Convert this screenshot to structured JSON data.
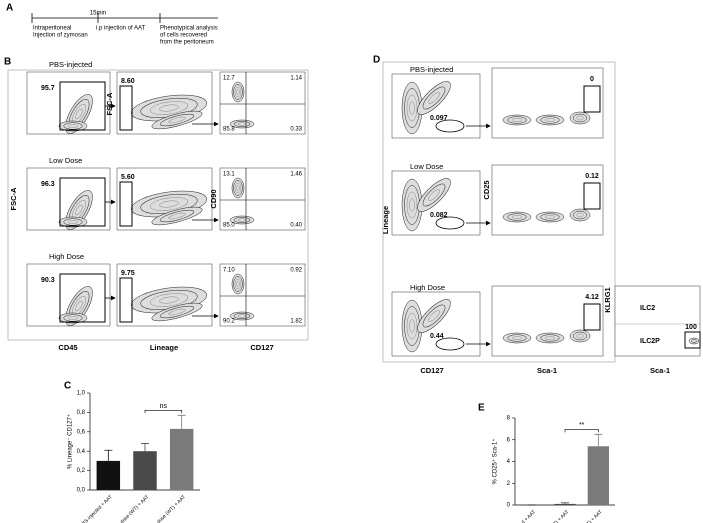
{
  "panel_labels": [
    "A",
    "B",
    "C",
    "D",
    "E"
  ],
  "timeline": {
    "step_1": [
      "Intraperitoneal",
      "Injection of zymosan"
    ],
    "interval": "15min",
    "step_2": "i.p injection of AAT",
    "step_3": [
      "Phenotypical analysis",
      "of cells recovered",
      "from the peritoneum"
    ]
  },
  "panel_b": {
    "row_titles": [
      "PBS-injected",
      "Low Dose",
      "High Dose"
    ],
    "axis_labels": {
      "y1": "FSC-A",
      "x1": "CD45",
      "y2": "FSC-A",
      "x2": "Lineage",
      "y3": "CD90",
      "x3": "CD127"
    },
    "cd45_gate": [
      "95.7",
      "96.3",
      "90.3"
    ],
    "lineage_gate": [
      "8.60",
      "5.60",
      "9.75"
    ],
    "quadrants": [
      [
        "12.7",
        "1.14",
        "85.8",
        "0.33"
      ],
      [
        "13.1",
        "1.46",
        "85.0",
        "0.40"
      ],
      [
        "7.10",
        "0.92",
        "90.2",
        "1.82"
      ]
    ]
  },
  "panel_d": {
    "row_titles": [
      "PBS-injected",
      "Low Dose",
      "High Dose"
    ],
    "axis_labels": {
      "y1": "Lineage",
      "x1": "CD127",
      "y2": "CD25",
      "x2": "Sca-1",
      "y3": "KLRG1",
      "x3": "Sca-1"
    },
    "cd127_gate": [
      "0.097",
      "0.082",
      "0.44"
    ],
    "sca1_gate": [
      "0",
      "0.12",
      "4.12"
    ],
    "klrg1_panel": {
      "upper": "ILC2",
      "lower": "ILC2P",
      "gate": "100"
    }
  },
  "chart_data": [
    {
      "type": "bar",
      "ylabel": "% Lineage⁻ CD127⁺",
      "categories": [
        "PBS-injected + AAT",
        "Low-dose (WT) + AAT",
        "High-dose (WT) + AAT"
      ],
      "values": [
        0.3,
        0.4,
        0.63
      ],
      "errors": [
        0.11,
        0.08,
        0.14
      ],
      "colors": [
        "#111111",
        "#4a4a4a",
        "#7a7a7a"
      ],
      "ylim": [
        0,
        1.0
      ],
      "yticks": [
        {
          "value": 0,
          "label": "0,0"
        },
        {
          "value": 0.2,
          "label": "0,2"
        },
        {
          "value": 0.4,
          "label": "0,4"
        },
        {
          "value": 0.6,
          "label": "0,6"
        },
        {
          "value": 0.8,
          "label": "0,8"
        },
        {
          "value": 1.0,
          "label": "1,0"
        }
      ],
      "annotation": "ns"
    },
    {
      "type": "bar",
      "ylabel": "% CD25⁺ Sca-1⁺",
      "categories": [
        "PBS-injected + AAT",
        "Low-dose (WT) + AAT",
        "High-dose (WT) + AAT"
      ],
      "values": [
        0,
        0.1,
        5.4
      ],
      "errors": [
        0,
        0.1,
        1.1
      ],
      "colors": [
        "#111111",
        "#4a4a4a",
        "#7a7a7a"
      ],
      "ylim": [
        0,
        8
      ],
      "yticks": [
        0,
        2,
        4,
        6,
        8
      ],
      "annotation": "**"
    }
  ]
}
